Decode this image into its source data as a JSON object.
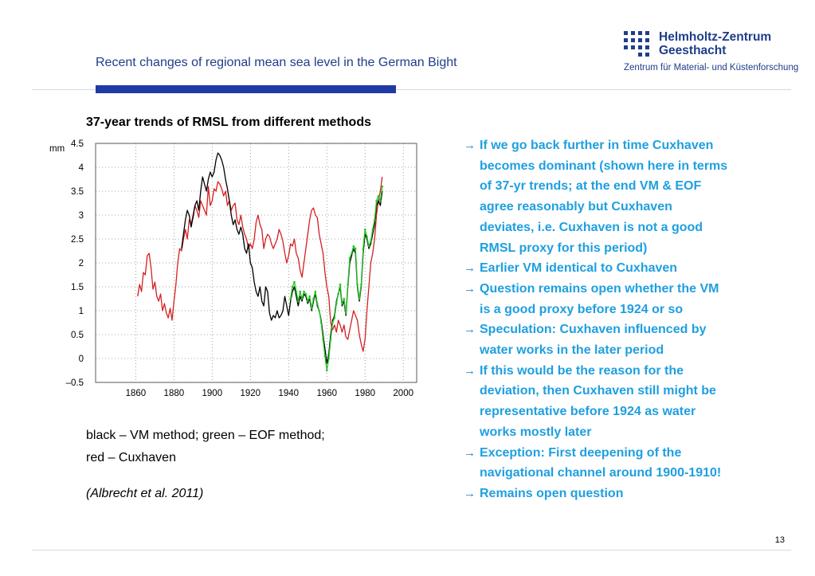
{
  "header": {
    "title": "Recent changes of regional mean sea level in the German Bight"
  },
  "logo": {
    "name_line1": "Helmholtz-Zentrum",
    "name_line2": "Geesthacht",
    "subtitle": "Zentrum für Material- und Küstenforschung",
    "color": "#1f3d8a"
  },
  "chart_title": "37-year trends of RMSL from different methods",
  "chart_data": {
    "type": "line",
    "ylabel": "mm",
    "xlim": [
      1839,
      2007
    ],
    "ylim": [
      -0.5,
      4.5
    ],
    "xticks": [
      1860,
      1880,
      1900,
      1920,
      1940,
      1960,
      1980,
      2000
    ],
    "yticks": [
      4.5,
      4,
      3.5,
      3,
      2.5,
      2,
      1.5,
      1,
      0.5,
      0,
      -0.5
    ],
    "ytick_labels": [
      "4.5",
      "4",
      "3.5",
      "3",
      "2.5",
      "2",
      "1.5",
      "1",
      "0.5",
      "0",
      "–0.5"
    ],
    "grid": "dotted",
    "series": [
      {
        "color": "#d42020",
        "points": [
          [
            1861,
            1.3
          ],
          [
            1862,
            1.55
          ],
          [
            1863,
            1.4
          ],
          [
            1864,
            1.8
          ],
          [
            1865,
            1.75
          ],
          [
            1866,
            2.15
          ],
          [
            1867,
            2.2
          ],
          [
            1868,
            1.9
          ],
          [
            1869,
            1.45
          ],
          [
            1870,
            1.6
          ],
          [
            1871,
            1.3
          ],
          [
            1872,
            1.2
          ],
          [
            1873,
            1.35
          ],
          [
            1874,
            1.0
          ],
          [
            1875,
            1.15
          ],
          [
            1876,
            0.95
          ],
          [
            1877,
            0.85
          ],
          [
            1878,
            1.05
          ],
          [
            1879,
            0.8
          ],
          [
            1880,
            1.2
          ],
          [
            1881,
            1.55
          ],
          [
            1882,
            2.0
          ],
          [
            1883,
            2.3
          ],
          [
            1884,
            2.25
          ],
          [
            1885,
            2.5
          ],
          [
            1886,
            2.7
          ],
          [
            1887,
            2.5
          ],
          [
            1888,
            2.9
          ],
          [
            1889,
            2.8
          ],
          [
            1890,
            3.0
          ],
          [
            1891,
            3.2
          ],
          [
            1892,
            3.1
          ],
          [
            1893,
            2.95
          ],
          [
            1894,
            3.3
          ],
          [
            1895,
            3.2
          ],
          [
            1896,
            3.1
          ],
          [
            1897,
            3.0
          ],
          [
            1898,
            3.6
          ],
          [
            1899,
            3.2
          ],
          [
            1900,
            3.3
          ],
          [
            1901,
            3.55
          ],
          [
            1902,
            3.5
          ],
          [
            1903,
            3.7
          ],
          [
            1904,
            3.65
          ],
          [
            1905,
            3.55
          ],
          [
            1906,
            3.4
          ],
          [
            1907,
            3.5
          ],
          [
            1908,
            3.2
          ],
          [
            1909,
            3.3
          ],
          [
            1910,
            3.1
          ],
          [
            1911,
            3.2
          ],
          [
            1912,
            3.25
          ],
          [
            1913,
            2.9
          ],
          [
            1914,
            2.8
          ],
          [
            1915,
            3.0
          ],
          [
            1916,
            2.75
          ],
          [
            1917,
            2.6
          ],
          [
            1918,
            2.5
          ],
          [
            1919,
            2.3
          ],
          [
            1920,
            2.4
          ],
          [
            1921,
            2.3
          ],
          [
            1922,
            2.5
          ],
          [
            1923,
            2.85
          ],
          [
            1924,
            3.0
          ],
          [
            1925,
            2.8
          ],
          [
            1926,
            2.7
          ],
          [
            1927,
            2.3
          ],
          [
            1928,
            2.5
          ],
          [
            1929,
            2.6
          ],
          [
            1930,
            2.55
          ],
          [
            1931,
            2.4
          ],
          [
            1932,
            2.3
          ],
          [
            1933,
            2.4
          ],
          [
            1934,
            2.5
          ],
          [
            1935,
            2.7
          ],
          [
            1936,
            2.6
          ],
          [
            1937,
            2.45
          ],
          [
            1938,
            2.2
          ],
          [
            1939,
            2.0
          ],
          [
            1940,
            2.15
          ],
          [
            1941,
            2.4
          ],
          [
            1942,
            2.35
          ],
          [
            1943,
            2.5
          ],
          [
            1944,
            2.2
          ],
          [
            1945,
            2.1
          ],
          [
            1946,
            1.85
          ],
          [
            1947,
            1.7
          ],
          [
            1948,
            2.0
          ],
          [
            1949,
            2.3
          ],
          [
            1950,
            2.6
          ],
          [
            1951,
            2.9
          ],
          [
            1952,
            3.1
          ],
          [
            1953,
            3.15
          ],
          [
            1954,
            3.0
          ],
          [
            1955,
            2.95
          ],
          [
            1956,
            2.6
          ],
          [
            1957,
            2.4
          ],
          [
            1958,
            2.2
          ],
          [
            1959,
            1.8
          ],
          [
            1960,
            1.5
          ],
          [
            1961,
            1.3
          ],
          [
            1962,
            0.75
          ],
          [
            1963,
            0.6
          ],
          [
            1964,
            0.7
          ],
          [
            1965,
            0.55
          ],
          [
            1966,
            0.8
          ],
          [
            1967,
            0.7
          ],
          [
            1968,
            0.55
          ],
          [
            1969,
            0.7
          ],
          [
            1970,
            0.45
          ],
          [
            1971,
            0.4
          ],
          [
            1972,
            0.6
          ],
          [
            1973,
            0.8
          ],
          [
            1974,
            1.0
          ],
          [
            1975,
            0.9
          ],
          [
            1976,
            0.8
          ],
          [
            1977,
            0.5
          ],
          [
            1978,
            0.3
          ],
          [
            1979,
            0.15
          ],
          [
            1980,
            0.4
          ],
          [
            1981,
            1.0
          ],
          [
            1982,
            1.5
          ],
          [
            1983,
            2.0
          ],
          [
            1984,
            2.2
          ],
          [
            1985,
            2.5
          ],
          [
            1986,
            3.0
          ],
          [
            1987,
            3.3
          ],
          [
            1988,
            3.5
          ],
          [
            1989,
            3.8
          ]
        ]
      },
      {
        "color": "#000000",
        "points": [
          [
            1884,
            2.3
          ],
          [
            1885,
            2.6
          ],
          [
            1886,
            2.9
          ],
          [
            1887,
            3.1
          ],
          [
            1888,
            3.0
          ],
          [
            1889,
            2.75
          ],
          [
            1890,
            2.95
          ],
          [
            1891,
            3.2
          ],
          [
            1892,
            3.3
          ],
          [
            1893,
            3.1
          ],
          [
            1894,
            3.5
          ],
          [
            1895,
            3.8
          ],
          [
            1896,
            3.65
          ],
          [
            1897,
            3.5
          ],
          [
            1898,
            3.75
          ],
          [
            1899,
            3.9
          ],
          [
            1900,
            3.8
          ],
          [
            1901,
            3.9
          ],
          [
            1902,
            4.15
          ],
          [
            1903,
            4.3
          ],
          [
            1904,
            4.25
          ],
          [
            1905,
            4.15
          ],
          [
            1906,
            4.0
          ],
          [
            1907,
            3.75
          ],
          [
            1908,
            3.55
          ],
          [
            1909,
            3.3
          ],
          [
            1910,
            3.0
          ],
          [
            1911,
            2.8
          ],
          [
            1912,
            2.9
          ],
          [
            1913,
            2.7
          ],
          [
            1914,
            2.6
          ],
          [
            1915,
            2.75
          ],
          [
            1916,
            2.6
          ],
          [
            1917,
            2.3
          ],
          [
            1918,
            2.2
          ],
          [
            1919,
            2.4
          ],
          [
            1920,
            2.0
          ],
          [
            1921,
            1.9
          ],
          [
            1922,
            1.6
          ],
          [
            1923,
            1.4
          ],
          [
            1924,
            1.3
          ],
          [
            1925,
            1.5
          ],
          [
            1926,
            1.2
          ],
          [
            1927,
            1.1
          ],
          [
            1928,
            1.5
          ],
          [
            1929,
            1.4
          ],
          [
            1930,
            0.95
          ],
          [
            1931,
            0.8
          ],
          [
            1932,
            0.9
          ],
          [
            1933,
            0.85
          ],
          [
            1934,
            1.0
          ],
          [
            1935,
            0.85
          ],
          [
            1936,
            0.9
          ],
          [
            1937,
            1.0
          ],
          [
            1938,
            1.3
          ],
          [
            1939,
            1.1
          ],
          [
            1940,
            0.9
          ],
          [
            1941,
            1.2
          ],
          [
            1942,
            1.4
          ],
          [
            1943,
            1.5
          ],
          [
            1944,
            1.3
          ],
          [
            1945,
            1.1
          ],
          [
            1946,
            1.3
          ],
          [
            1947,
            1.2
          ],
          [
            1948,
            1.35
          ],
          [
            1949,
            1.3
          ],
          [
            1950,
            1.15
          ],
          [
            1951,
            1.25
          ],
          [
            1952,
            1.0
          ],
          [
            1953,
            1.2
          ],
          [
            1954,
            1.35
          ],
          [
            1955,
            1.1
          ],
          [
            1956,
            1.0
          ],
          [
            1957,
            0.8
          ],
          [
            1958,
            0.5
          ],
          [
            1959,
            0.2
          ],
          [
            1960,
            -0.1
          ],
          [
            1961,
            0.1
          ],
          [
            1962,
            0.5
          ],
          [
            1963,
            0.8
          ],
          [
            1964,
            0.9
          ],
          [
            1965,
            1.2
          ],
          [
            1966,
            1.35
          ],
          [
            1967,
            1.5
          ],
          [
            1968,
            1.1
          ],
          [
            1969,
            1.2
          ],
          [
            1970,
            0.9
          ],
          [
            1971,
            1.5
          ],
          [
            1972,
            2.0
          ],
          [
            1973,
            2.15
          ],
          [
            1974,
            2.3
          ],
          [
            1975,
            2.2
          ],
          [
            1976,
            1.5
          ],
          [
            1977,
            1.2
          ],
          [
            1978,
            1.5
          ],
          [
            1979,
            2.2
          ],
          [
            1980,
            2.6
          ],
          [
            1981,
            2.5
          ],
          [
            1982,
            2.3
          ],
          [
            1983,
            2.4
          ],
          [
            1984,
            2.6
          ],
          [
            1985,
            2.8
          ],
          [
            1986,
            3.2
          ],
          [
            1987,
            3.3
          ],
          [
            1988,
            3.2
          ],
          [
            1989,
            3.5
          ]
        ]
      },
      {
        "color": "#22c322",
        "points": [
          [
            1941,
            1.25
          ],
          [
            1942,
            1.5
          ],
          [
            1943,
            1.6
          ],
          [
            1944,
            1.4
          ],
          [
            1945,
            1.2
          ],
          [
            1946,
            1.4
          ],
          [
            1947,
            1.25
          ],
          [
            1948,
            1.4
          ],
          [
            1949,
            1.35
          ],
          [
            1950,
            1.2
          ],
          [
            1951,
            1.3
          ],
          [
            1952,
            1.05
          ],
          [
            1953,
            1.25
          ],
          [
            1954,
            1.4
          ],
          [
            1955,
            1.15
          ],
          [
            1956,
            1.0
          ],
          [
            1957,
            0.75
          ],
          [
            1958,
            0.4
          ],
          [
            1959,
            0.05
          ],
          [
            1960,
            -0.25
          ],
          [
            1961,
            0.0
          ],
          [
            1962,
            0.4
          ],
          [
            1963,
            0.75
          ],
          [
            1964,
            0.85
          ],
          [
            1965,
            1.15
          ],
          [
            1966,
            1.35
          ],
          [
            1967,
            1.55
          ],
          [
            1968,
            1.15
          ],
          [
            1969,
            1.25
          ],
          [
            1970,
            0.95
          ],
          [
            1971,
            1.55
          ],
          [
            1972,
            2.1
          ],
          [
            1973,
            2.2
          ],
          [
            1974,
            2.35
          ],
          [
            1975,
            2.3
          ],
          [
            1976,
            1.55
          ],
          [
            1977,
            1.25
          ],
          [
            1978,
            1.55
          ],
          [
            1979,
            2.3
          ],
          [
            1980,
            2.7
          ],
          [
            1981,
            2.55
          ],
          [
            1982,
            2.35
          ],
          [
            1983,
            2.45
          ],
          [
            1984,
            2.7
          ],
          [
            1985,
            2.9
          ],
          [
            1986,
            3.3
          ],
          [
            1987,
            3.4
          ],
          [
            1988,
            3.3
          ],
          [
            1989,
            3.6
          ]
        ]
      }
    ]
  },
  "caption": {
    "line1": "black – VM method; green – EOF method;",
    "line2": "red – Cuxhaven",
    "citation": "(Albrecht et al. 2011)"
  },
  "bullets": [
    {
      "arrow": "→",
      "lines": [
        "If we go back further in time Cuxhaven",
        "becomes dominant (shown here in terms",
        "of 37-yr trends; at the end VM & EOF",
        "agree reasonably but Cuxhaven",
        "deviates, i.e. Cuxhaven is not a good",
        "RMSL proxy for this period)"
      ]
    },
    {
      "arrow": "→",
      "lines": [
        "Earlier VM identical to Cuxhaven"
      ]
    },
    {
      "arrow": "→",
      "lines": [
        "Question remains open whether the VM",
        "is a good proxy before 1924 or so"
      ]
    },
    {
      "arrow": "→",
      "lines": [
        "Speculation: Cuxhaven influenced by",
        "water works in the later period"
      ]
    },
    {
      "arrow": "→",
      "lines": [
        "If this would be the reason for the",
        "deviation, then Cuxhaven still might be",
        "representative before 1924 as water",
        "works mostly later"
      ]
    },
    {
      "arrow": "→",
      "lines": [
        "Exception: First deepening of the",
        "navigational channel around 1900-1910!"
      ]
    },
    {
      "arrow": "→",
      "lines": [
        "Remains open question"
      ]
    }
  ],
  "colors": {
    "header_text": "#1f3d8a",
    "accent_bar": "#1f3aa4",
    "bullet_text": "#1e9fe0"
  },
  "page_number": "13"
}
